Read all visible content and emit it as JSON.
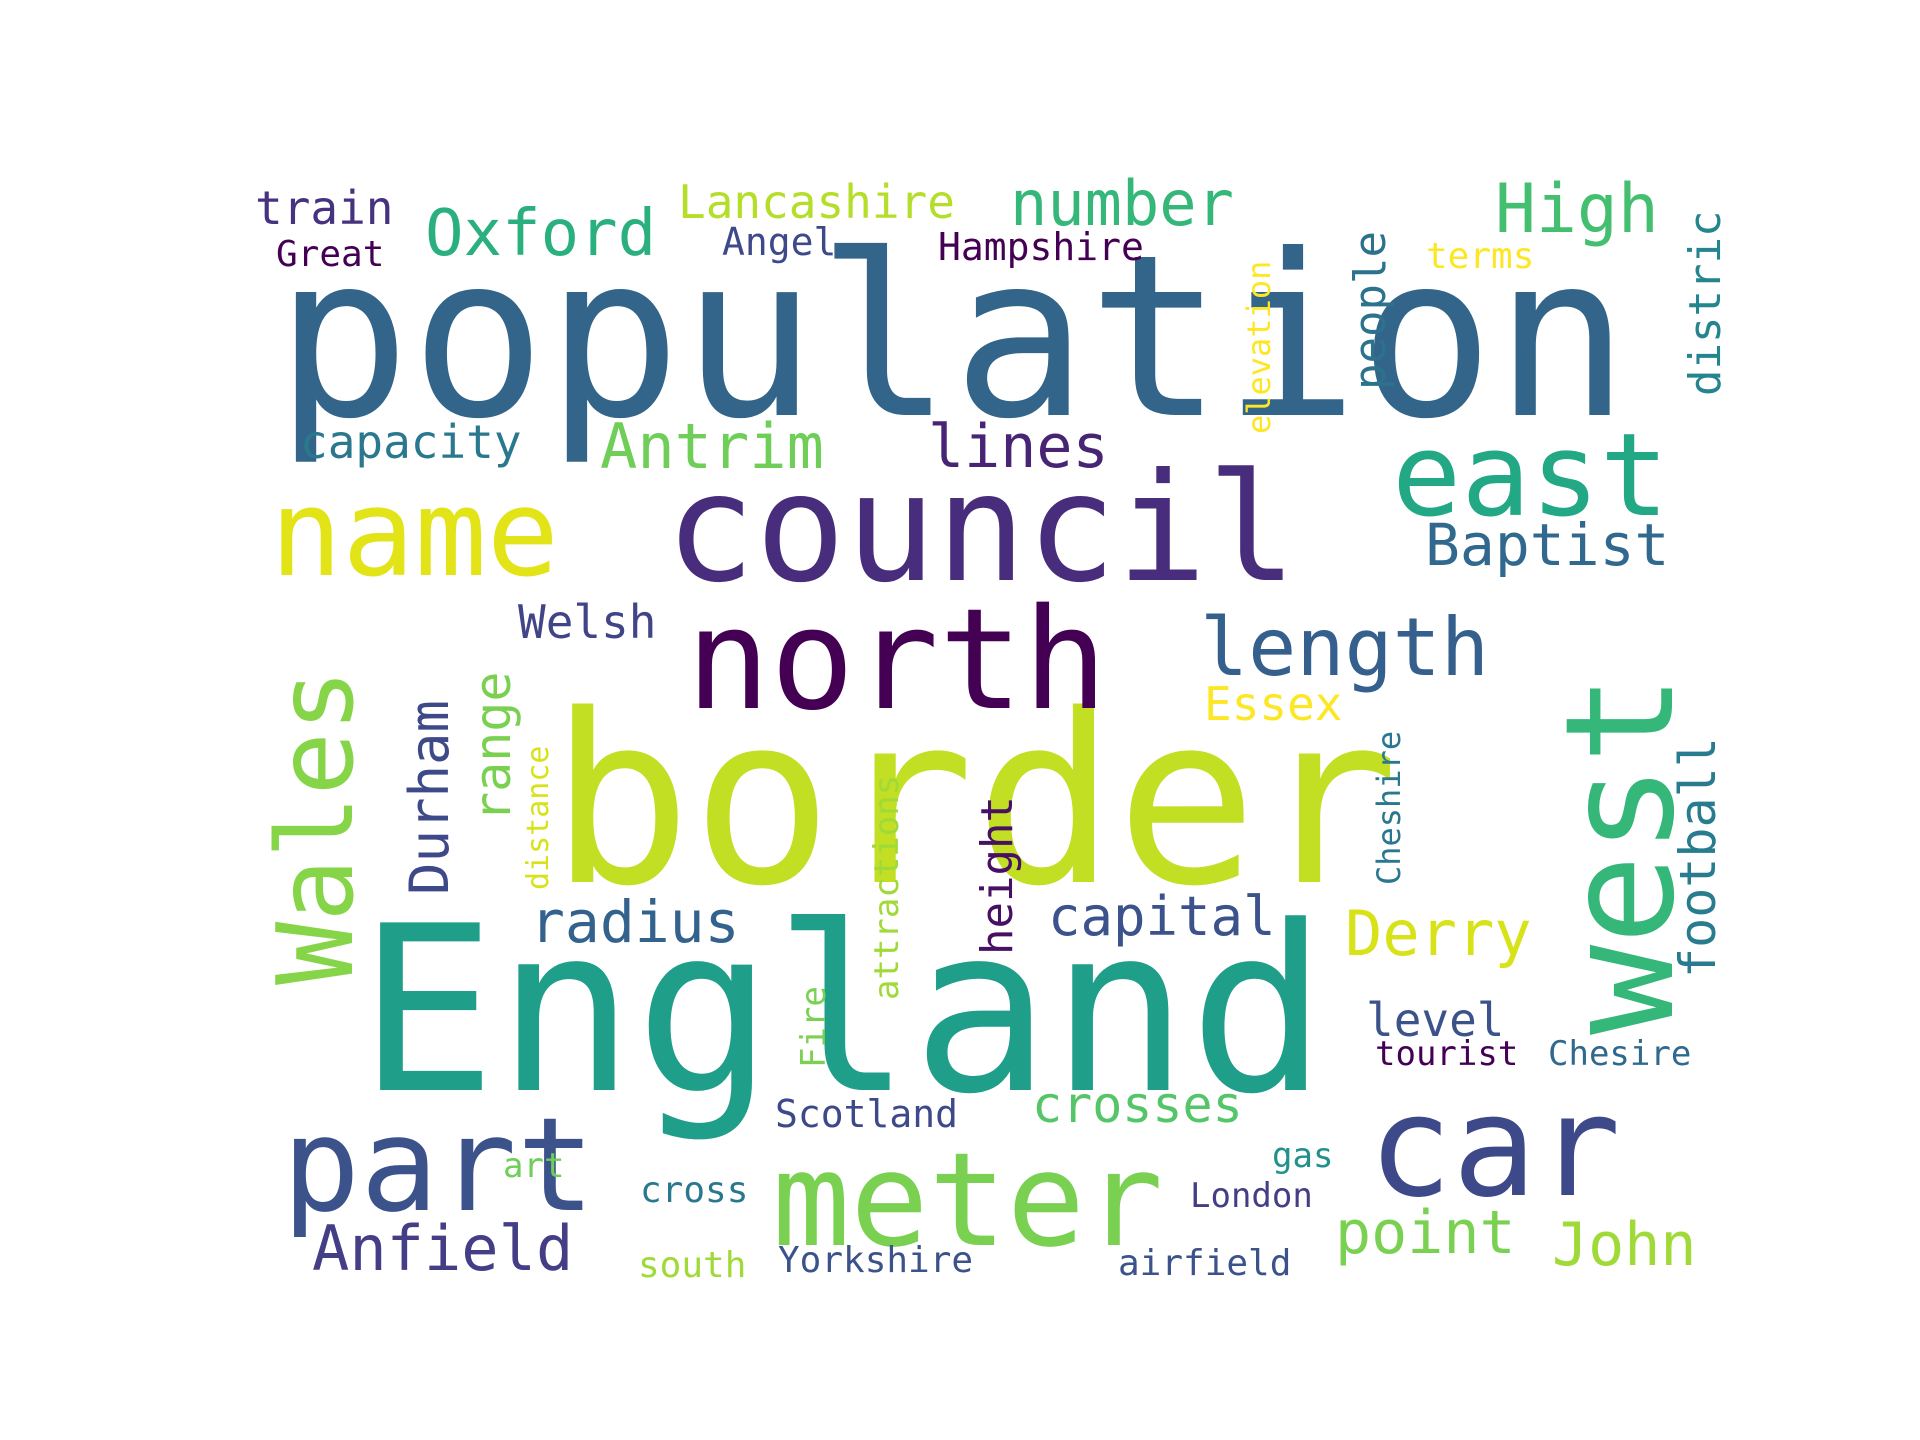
{
  "words": [
    {
      "text": "population",
      "color": "#33658a",
      "rotated": false
    },
    {
      "text": "border",
      "color": "#c2df23",
      "rotated": false
    },
    {
      "text": "England",
      "color": "#1f9e89",
      "rotated": false
    },
    {
      "text": "council",
      "color": "#472d7b",
      "rotated": false
    },
    {
      "text": "north",
      "color": "#440154",
      "rotated": false
    },
    {
      "text": "name",
      "color": "#e2e418",
      "rotated": false
    },
    {
      "text": "west",
      "color": "#35b779",
      "rotated": true
    },
    {
      "text": "car",
      "color": "#3e4989",
      "rotated": false
    },
    {
      "text": "meter",
      "color": "#7ad151",
      "rotated": false
    },
    {
      "text": "part",
      "color": "#3b528b",
      "rotated": false
    },
    {
      "text": "east",
      "color": "#22a884",
      "rotated": false
    },
    {
      "text": "Wales",
      "color": "#86d549",
      "rotated": true
    },
    {
      "text": "length",
      "color": "#355f8d",
      "rotated": false
    },
    {
      "text": "Oxford",
      "color": "#2ab07f",
      "rotated": false
    },
    {
      "text": "number",
      "color": "#35b779",
      "rotated": false
    },
    {
      "text": "High",
      "color": "#44bf70",
      "rotated": false
    },
    {
      "text": "Antrim",
      "color": "#6ece58",
      "rotated": false
    },
    {
      "text": "lines",
      "color": "#482475",
      "rotated": false
    },
    {
      "text": "Baptist",
      "color": "#31688e",
      "rotated": false
    },
    {
      "text": "Lancashire",
      "color": "#b5de2b",
      "rotated": false
    },
    {
      "text": "train",
      "color": "#46327e",
      "rotated": false
    },
    {
      "text": "capacity",
      "color": "#2a788e",
      "rotated": false
    },
    {
      "text": "Anfield",
      "color": "#433e85",
      "rotated": false
    },
    {
      "text": "radius",
      "color": "#33638d",
      "rotated": false
    },
    {
      "text": "capital",
      "color": "#3b528b",
      "rotated": false
    },
    {
      "text": "Derry",
      "color": "#d8e219",
      "rotated": false
    },
    {
      "text": "point",
      "color": "#7ad151",
      "rotated": false
    },
    {
      "text": "John",
      "color": "#a0da39",
      "rotated": false
    },
    {
      "text": "crosses",
      "color": "#54c568",
      "rotated": false
    },
    {
      "text": "football",
      "color": "#287c8e",
      "rotated": true
    },
    {
      "text": "Durham",
      "color": "#3e4989",
      "rotated": true
    },
    {
      "text": "range",
      "color": "#7ad151",
      "rotated": true
    },
    {
      "text": "Welsh",
      "color": "#414487",
      "rotated": false
    },
    {
      "text": "Essex",
      "color": "#fde725",
      "rotated": false
    },
    {
      "text": "people",
      "color": "#2c728e",
      "rotated": true
    },
    {
      "text": "distric",
      "color": "#25858e",
      "rotated": true
    },
    {
      "text": "height",
      "color": "#471063",
      "rotated": true
    },
    {
      "text": "level",
      "color": "#3b528b",
      "rotated": false
    },
    {
      "text": "Angel",
      "color": "#3e4989",
      "rotated": false
    },
    {
      "text": "Hampshire",
      "color": "#440154",
      "rotated": false
    },
    {
      "text": "Great",
      "color": "#440154",
      "rotated": false
    },
    {
      "text": "terms",
      "color": "#fde725",
      "rotated": false
    },
    {
      "text": "elevation",
      "color": "#fde725",
      "rotated": true
    },
    {
      "text": "Cheshire",
      "color": "#2a788e",
      "rotated": true
    },
    {
      "text": "attractions",
      "color": "#a0da39",
      "rotated": true
    },
    {
      "text": "distance",
      "color": "#d8e219",
      "rotated": true
    },
    {
      "text": "Fire",
      "color": "#7ad151",
      "rotated": true
    },
    {
      "text": "tourist",
      "color": "#440154",
      "rotated": false
    },
    {
      "text": "Chesire",
      "color": "#31688e",
      "rotated": false
    },
    {
      "text": "Scotland",
      "color": "#3e4989",
      "rotated": false
    },
    {
      "text": "gas",
      "color": "#21918c",
      "rotated": false
    },
    {
      "text": "art",
      "color": "#6ece58",
      "rotated": false
    },
    {
      "text": "cross",
      "color": "#2a788e",
      "rotated": false
    },
    {
      "text": "London",
      "color": "#433e85",
      "rotated": false
    },
    {
      "text": "south",
      "color": "#a0da39",
      "rotated": false
    },
    {
      "text": "Yorkshire",
      "color": "#3b528b",
      "rotated": false
    },
    {
      "text": "airfield",
      "color": "#3b528b",
      "rotated": false
    }
  ]
}
